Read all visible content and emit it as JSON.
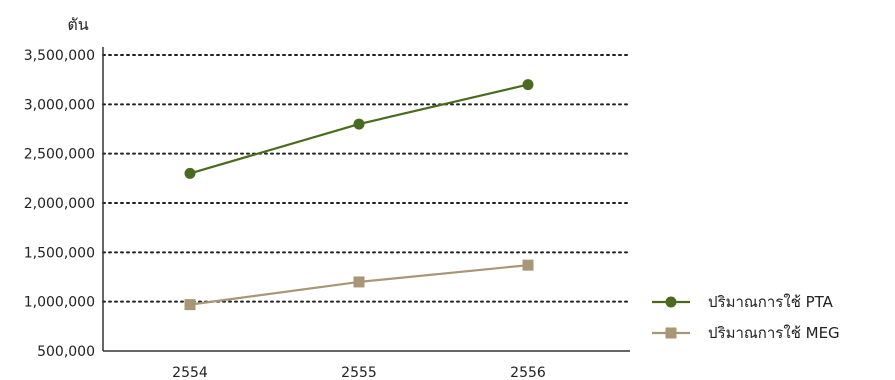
{
  "chart_data": {
    "type": "line",
    "title": "",
    "ylabel": "ตัน",
    "xlabel": "",
    "categories": [
      "2554",
      "2555",
      "2556"
    ],
    "ylim": [
      500000,
      3500000
    ],
    "yticks": [
      "3,500,000",
      "3,000,000",
      "2,500,000",
      "2,000,000",
      "1,500,000",
      "1,000,000",
      "500,000"
    ],
    "ytick_values": [
      3500000,
      3000000,
      2500000,
      2000000,
      1500000,
      1000000,
      500000
    ],
    "grid": true,
    "legend_position": "bottom-right",
    "series": [
      {
        "name": "ปริมาณการใช้ PTA",
        "values": [
          2300000,
          2800000,
          3200000
        ],
        "color": "#4a6b1f",
        "marker": "circle"
      },
      {
        "name": "ปริมาณการใช้ MEG",
        "values": [
          970000,
          1200000,
          1370000
        ],
        "color": "#a89676",
        "marker": "square"
      }
    ]
  }
}
